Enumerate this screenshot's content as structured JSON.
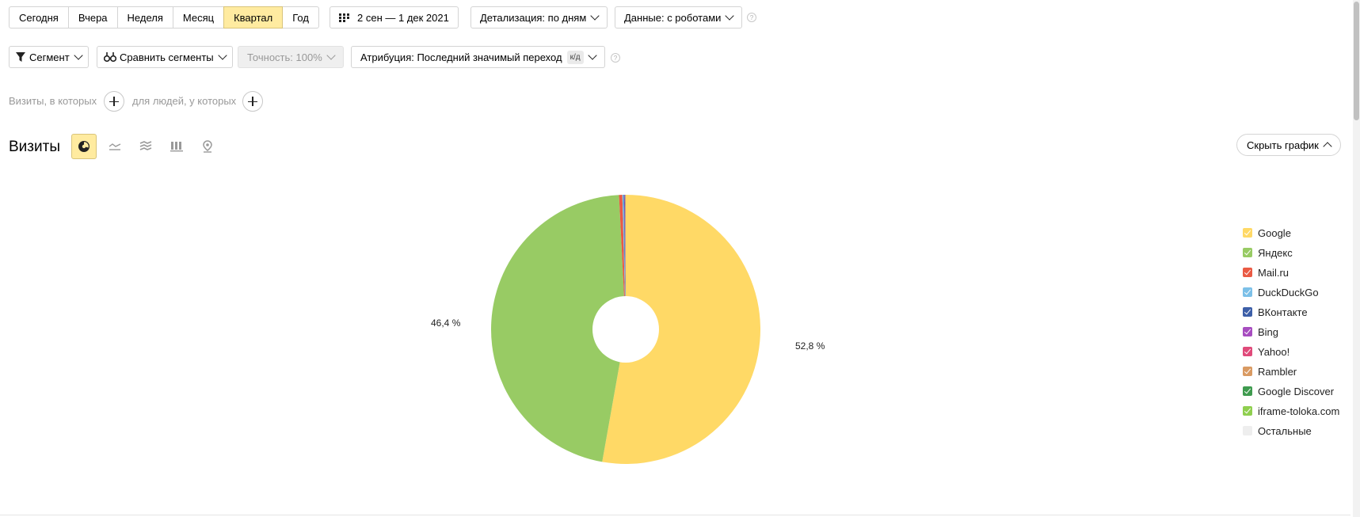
{
  "toolbar": {
    "periods": [
      "Сегодня",
      "Вчера",
      "Неделя",
      "Месяц",
      "Квартал",
      "Год"
    ],
    "active_period": "Квартал",
    "date_range": "2 сен — 1 дек 2021",
    "detail_label": "Детализация: по дням",
    "data_label": "Данные: с роботами"
  },
  "filters": {
    "segment_label": "Сегмент",
    "compare_label": "Сравнить сегменты",
    "accuracy_label": "Точность: 100%",
    "attribution_label": "Атрибуция: Последний значимый переход",
    "attribution_badge": "к/д"
  },
  "conditions": {
    "visits_label": "Визиты, в которых",
    "people_label": "для людей, у которых"
  },
  "chart_header": {
    "title": "Визиты",
    "hide_label": "Скрыть график",
    "active_view": "pie-chart"
  },
  "chart_data": {
    "type": "pie",
    "donut": true,
    "title": "",
    "slices": [
      {
        "name": "Google",
        "value": 52.8,
        "label": "52,8 %",
        "color": "#ffd966"
      },
      {
        "name": "Яндекс",
        "value": 46.4,
        "label": "46,4 %",
        "color": "#98cb64"
      },
      {
        "name": "Mail.ru",
        "value": 0.4,
        "label": "",
        "color": "#ea5a44"
      },
      {
        "name": "DuckDuckGo",
        "value": 0.15,
        "label": "",
        "color": "#7cc0e8"
      },
      {
        "name": "ВКонтакте",
        "value": 0.1,
        "label": "",
        "color": "#3d5fa8"
      },
      {
        "name": "Bing",
        "value": 0.05,
        "label": "",
        "color": "#a74dc0"
      },
      {
        "name": "Yahoo!",
        "value": 0.04,
        "label": "",
        "color": "#e04a7a"
      },
      {
        "name": "Rambler",
        "value": 0.03,
        "label": "",
        "color": "#d99a62"
      },
      {
        "name": "Google Discover",
        "value": 0.02,
        "label": "",
        "color": "#3f9b4f"
      },
      {
        "name": "iframe-toloka.com",
        "value": 0.01,
        "label": "",
        "color": "#8fcf4f"
      }
    ],
    "legend": [
      {
        "name": "Google",
        "color": "#ffd966",
        "checked": true
      },
      {
        "name": "Яндекс",
        "color": "#98cb64",
        "checked": true
      },
      {
        "name": "Mail.ru",
        "color": "#ea5a44",
        "checked": true
      },
      {
        "name": "DuckDuckGo",
        "color": "#7cc0e8",
        "checked": true
      },
      {
        "name": "ВКонтакте",
        "color": "#3d5fa8",
        "checked": true
      },
      {
        "name": "Bing",
        "color": "#a74dc0",
        "checked": true
      },
      {
        "name": "Yahoo!",
        "color": "#e04a7a",
        "checked": true
      },
      {
        "name": "Rambler",
        "color": "#d99a62",
        "checked": true
      },
      {
        "name": "Google Discover",
        "color": "#3f9b4f",
        "checked": true
      },
      {
        "name": "iframe-toloka.com",
        "color": "#8fcf4f",
        "checked": true
      },
      {
        "name": "Остальные",
        "color": "#eeeeee",
        "checked": false
      }
    ],
    "legend_position": "right"
  }
}
